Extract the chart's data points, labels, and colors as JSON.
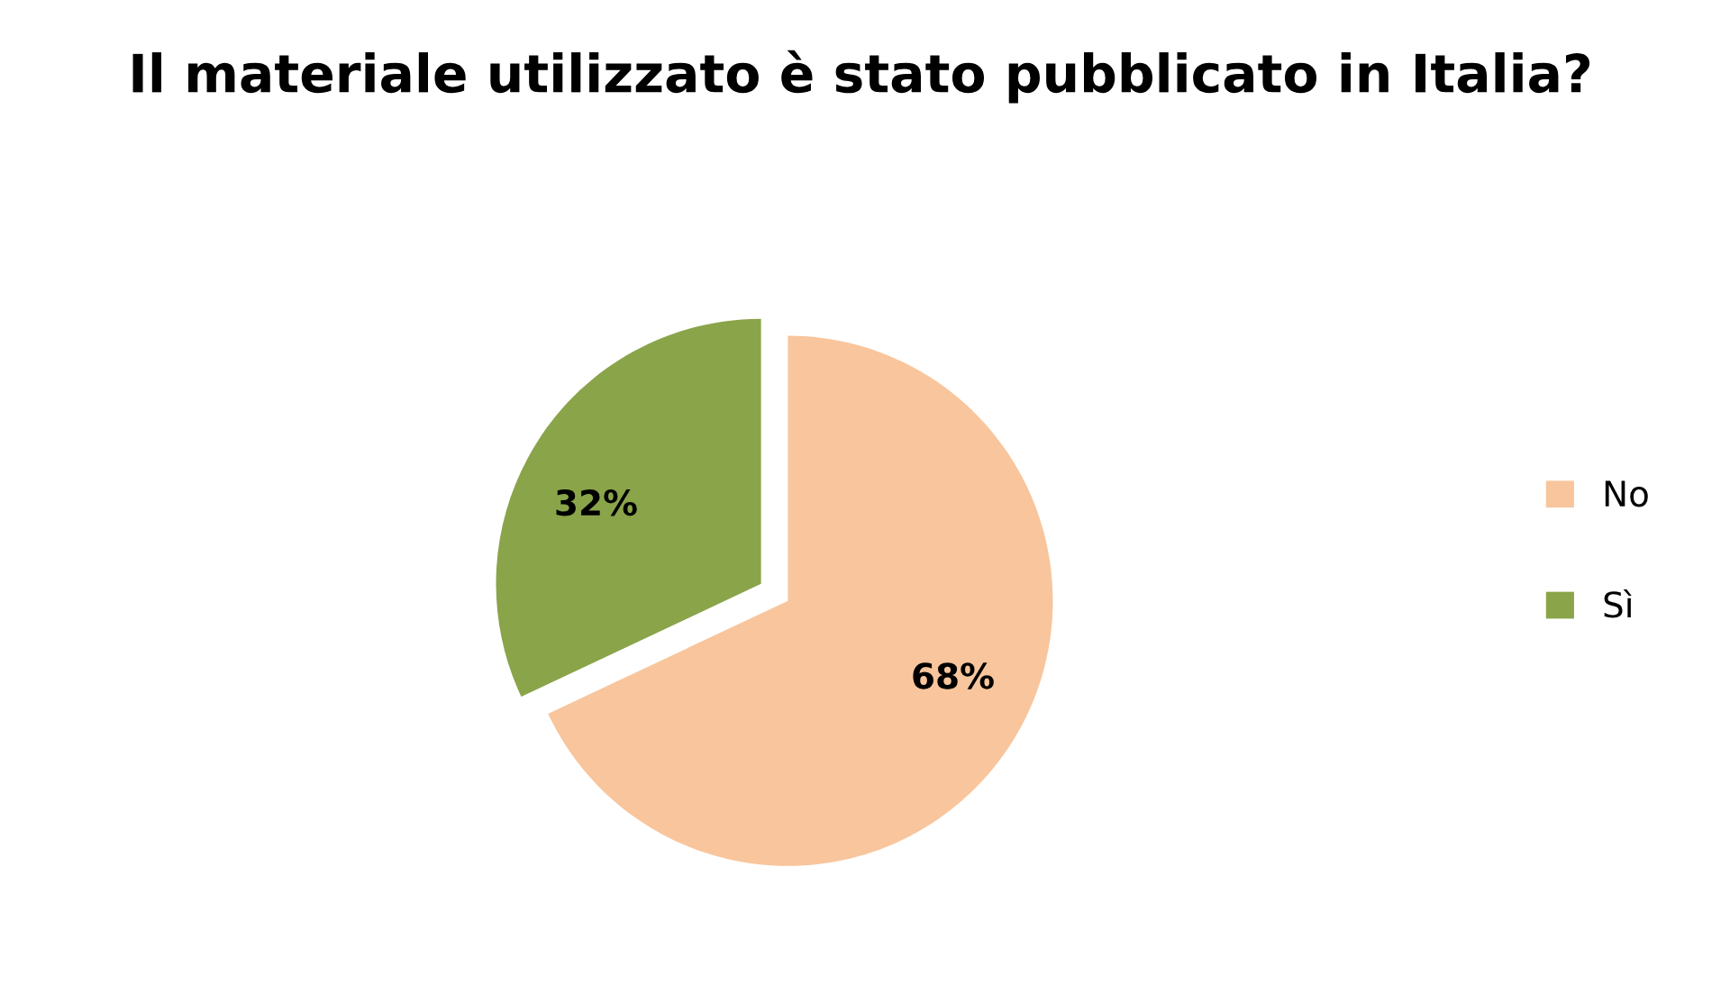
{
  "chart_data": {
    "type": "pie",
    "title": "Il materiale utilizzato è stato pubblicato in Italia?",
    "categories": [
      "No",
      "Sì"
    ],
    "values": [
      68,
      32
    ],
    "value_labels": [
      "68%",
      "32%"
    ],
    "colors": [
      "#f8c59c",
      "#8aa44a"
    ],
    "legend": "right"
  }
}
